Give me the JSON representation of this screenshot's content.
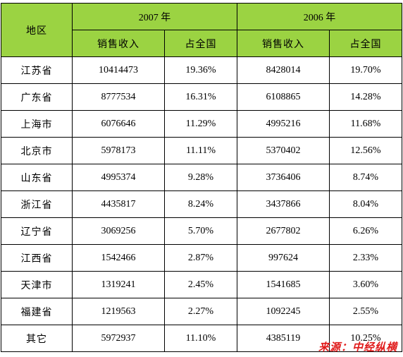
{
  "header": {
    "region_label": "地区",
    "year_2007": "2007 年",
    "year_2006": "2006 年",
    "sales_label_2007": "销售收入",
    "share_label_2007": "占全国",
    "sales_label_2006": "销售收入",
    "share_label_2006": "占全国"
  },
  "rows": [
    {
      "region": "江苏省",
      "sales_2007": "10414473",
      "share_2007": "19.36%",
      "sales_2006": "8428014",
      "share_2006": "19.70%"
    },
    {
      "region": "广东省",
      "sales_2007": "8777534",
      "share_2007": "16.31%",
      "sales_2006": "6108865",
      "share_2006": "14.28%"
    },
    {
      "region": "上海市",
      "sales_2007": "6076646",
      "share_2007": "11.29%",
      "sales_2006": "4995216",
      "share_2006": "11.68%"
    },
    {
      "region": "北京市",
      "sales_2007": "5978173",
      "share_2007": "11.11%",
      "sales_2006": "5370402",
      "share_2006": "12.56%"
    },
    {
      "region": "山东省",
      "sales_2007": "4995374",
      "share_2007": "9.28%",
      "sales_2006": "3736406",
      "share_2006": "8.74%"
    },
    {
      "region": "浙江省",
      "sales_2007": "4435817",
      "share_2007": "8.24%",
      "sales_2006": "3437866",
      "share_2006": "8.04%"
    },
    {
      "region": "辽宁省",
      "sales_2007": "3069256",
      "share_2007": "5.70%",
      "sales_2006": "2677802",
      "share_2006": "6.26%"
    },
    {
      "region": "江西省",
      "sales_2007": "1542466",
      "share_2007": "2.87%",
      "sales_2006": "997624",
      "share_2006": "2.33%"
    },
    {
      "region": "天津市",
      "sales_2007": "1319241",
      "share_2007": "2.45%",
      "sales_2006": "1541685",
      "share_2006": "3.60%"
    },
    {
      "region": "福建省",
      "sales_2007": "1219563",
      "share_2007": "2.27%",
      "sales_2006": "1092245",
      "share_2006": "2.55%"
    },
    {
      "region": "其它",
      "sales_2007": "5972937",
      "share_2007": "11.10%",
      "sales_2006": "4385119",
      "share_2006": "10.25%"
    }
  ],
  "source_note": "来源：中经纵横",
  "colors": {
    "header_bg": "#9bd342",
    "source_text": "#e01b1b"
  }
}
